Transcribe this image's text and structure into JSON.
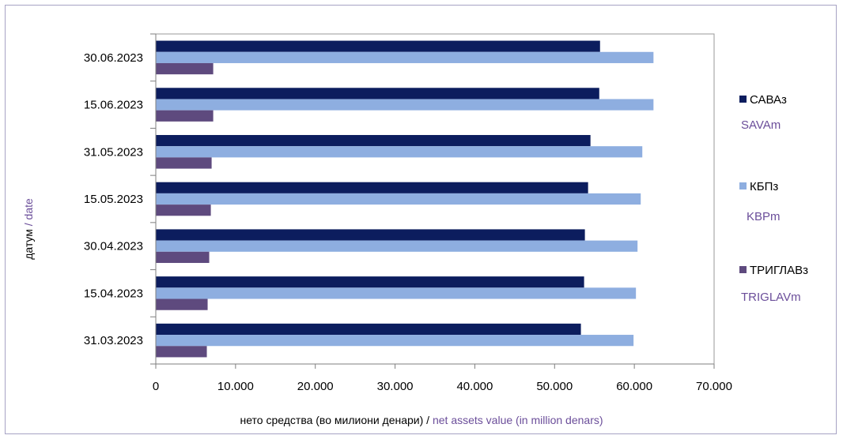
{
  "chart_data": {
    "type": "bar",
    "orientation": "horizontal",
    "categories": [
      "30.06.2023",
      "15.06.2023",
      "31.05.2023",
      "15.05.2023",
      "30.04.2023",
      "15.04.2023",
      "31.03.2023"
    ],
    "series": [
      {
        "name": "САВАз",
        "name_en": "SAVAm",
        "color": "#0c1d5e",
        "values": [
          55700,
          55600,
          54500,
          54200,
          53800,
          53700,
          53300
        ]
      },
      {
        "name": "КБПз",
        "name_en": "KBPm",
        "color": "#8eaee0",
        "values": [
          62400,
          62400,
          61000,
          60800,
          60400,
          60200,
          59900
        ]
      },
      {
        "name": "ТРИГЛАВз",
        "name_en": "TRIGLAVm",
        "color": "#5e4a7e",
        "values": [
          7200,
          7200,
          7000,
          6900,
          6700,
          6500,
          6400
        ]
      }
    ],
    "xlim": [
      0,
      70000
    ],
    "xticks": [
      "0",
      "10.000",
      "20.000",
      "30.000",
      "40.000",
      "50.000",
      "60.000",
      "70.000"
    ],
    "xlabel_mk": "нето средства (во милиони денари) /",
    "xlabel_en": " net assets value (in million denars)",
    "ylabel_mk": "датум",
    "ylabel_en": "  / date",
    "grid": false,
    "legend_position": "right"
  }
}
